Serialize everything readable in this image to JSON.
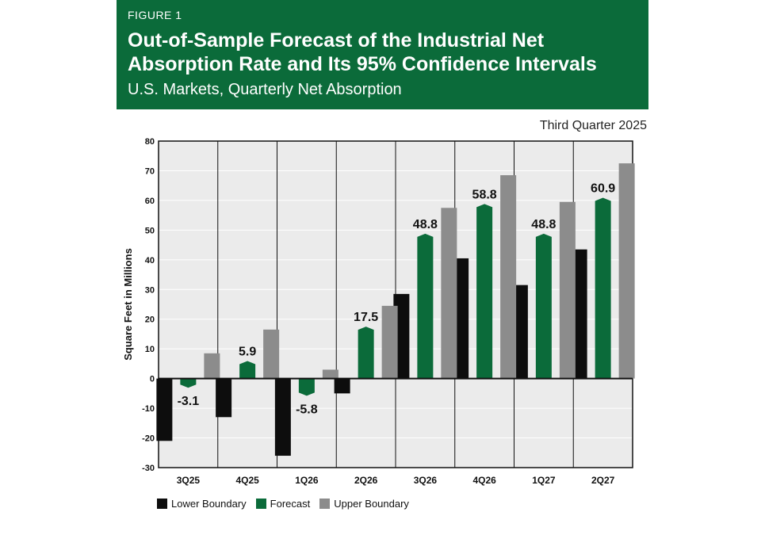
{
  "header": {
    "figure_label": "FIGURE 1",
    "title": "Out-of-Sample Forecast of the Industrial Net Absorption Rate and Its 95% Confidence Intervals",
    "subtitle": "U.S. Markets, Quarterly Net Absorption",
    "background_color": "#0b6b3a"
  },
  "date_note": "Third Quarter 2025",
  "chart_data": {
    "type": "bar",
    "categories": [
      "3Q25",
      "4Q25",
      "1Q26",
      "2Q26",
      "3Q26",
      "4Q26",
      "1Q27",
      "2Q27"
    ],
    "series": [
      {
        "name": "Lower Boundary",
        "color": "#0d0d0d",
        "values": [
          -21,
          -13,
          -26,
          -5,
          28.5,
          40.5,
          31.5,
          43.5
        ]
      },
      {
        "name": "Forecast",
        "color": "#0b6b3a",
        "values": [
          -3.1,
          5.9,
          -5.8,
          17.5,
          48.8,
          58.8,
          48.8,
          60.9
        ]
      },
      {
        "name": "Upper Boundary",
        "color": "#8c8c8c",
        "values": [
          8.5,
          16.5,
          3,
          24.5,
          57.5,
          68.5,
          59.5,
          72.5
        ]
      }
    ],
    "data_labels": [
      "-3.1",
      "5.9",
      "-5.8",
      "17.5",
      "48.8",
      "58.8",
      "48.8",
      "60.9"
    ],
    "ylabel": "Square Feet in Millions",
    "xlabel": "",
    "ylim": [
      -30,
      80
    ],
    "yticks": [
      -30,
      -20,
      -10,
      0,
      10,
      20,
      30,
      40,
      50,
      60,
      70,
      80
    ],
    "grid": true,
    "legend": "bottom-left"
  }
}
